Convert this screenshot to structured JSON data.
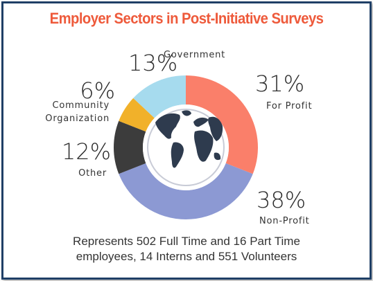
{
  "chart_data": {
    "type": "pie",
    "title": "Employer Sectors in Post-Initiative Surveys",
    "categories": [
      "For Profit",
      "Non-Profit",
      "Other",
      "Community Organization",
      "Government"
    ],
    "values": [
      31,
      38,
      12,
      6,
      13
    ],
    "value_labels": [
      "31%",
      "38%",
      "12%",
      "6%",
      "13%"
    ],
    "label_lines": [
      [
        "For Profit"
      ],
      [
        "Non-Profit"
      ],
      [
        "Other"
      ],
      [
        "Community",
        "Organization"
      ],
      [
        "Government"
      ]
    ],
    "colors": [
      "#fa7f6a",
      "#8c99d3",
      "#3c3c3c",
      "#f1b12a",
      "#a6dbee"
    ],
    "style": "donut"
  },
  "footnote": {
    "line1": "Represents 502 Full Time and 16 Part Time",
    "line2": "employees, 14 Interns and 551 Volunteers"
  },
  "center_icon": "globe-icon"
}
